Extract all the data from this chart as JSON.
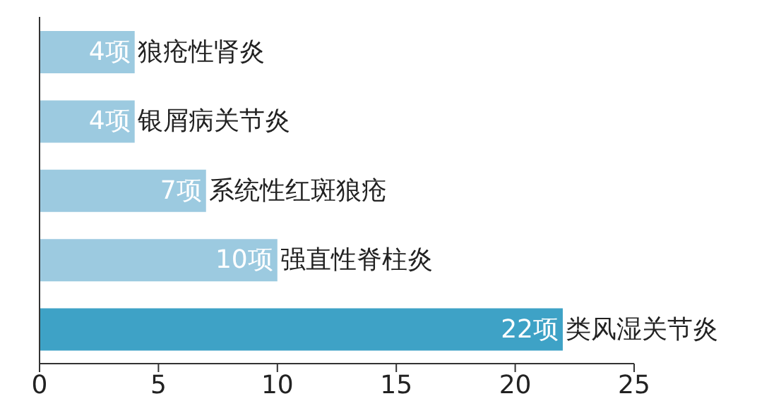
{
  "chart_data": {
    "type": "bar",
    "orientation": "horizontal",
    "categories": [
      "狼疮性肾炎",
      "银屑病关节炎",
      "系统性红斑狼疮",
      "强直性脊柱炎",
      "类风湿关节炎"
    ],
    "values": [
      4,
      4,
      7,
      10,
      22
    ],
    "value_labels": [
      "4项",
      "4项",
      "7项",
      "10项",
      "22项"
    ],
    "colors": [
      "#9ccae0",
      "#9ccae0",
      "#9ccae0",
      "#9ccae0",
      "#3ea2c6"
    ],
    "xlim": [
      0,
      25
    ],
    "xticks": [
      0,
      5,
      10,
      15,
      20,
      25
    ]
  }
}
